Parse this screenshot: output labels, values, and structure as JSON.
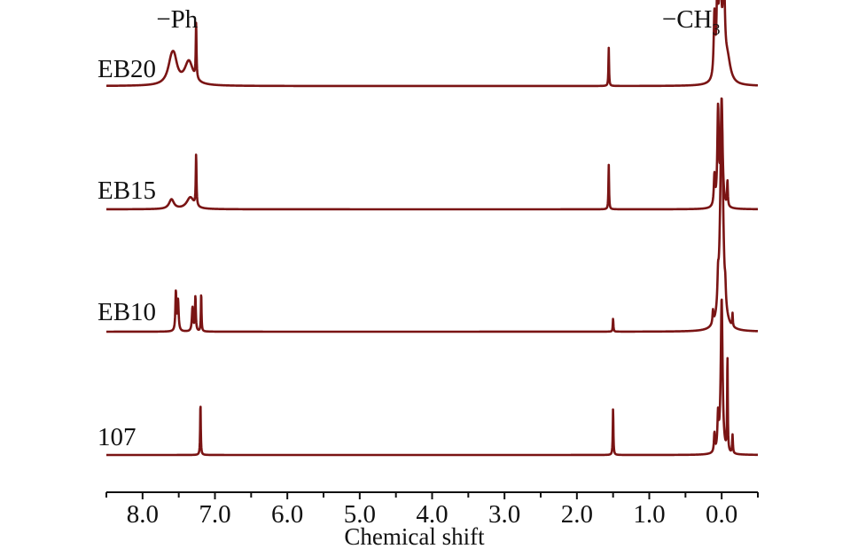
{
  "chart_data": {
    "type": "line",
    "title": "",
    "xlabel": "Chemical shift",
    "ylabel": "",
    "x_reversed": true,
    "xlim": [
      8.5,
      -0.5
    ],
    "x_ticks": [
      8.0,
      7.0,
      6.0,
      5.0,
      4.0,
      3.0,
      2.0,
      1.0,
      0.0
    ],
    "x_tick_labels": [
      "8.0",
      "7.0",
      "6.0",
      "5.0",
      "4.0",
      "3.0",
      "2.0",
      "1.0",
      "0.0"
    ],
    "grid": false,
    "line_color": "#7a1414",
    "annotations": [
      {
        "text_prefix": "−",
        "text": "Ph",
        "subscript": "",
        "x": 7.4
      },
      {
        "text_prefix": "−",
        "text": "CH",
        "subscript": "3",
        "x": 0.3
      }
    ],
    "series": [
      {
        "name": "EB20",
        "peaks": [
          {
            "x": 7.6,
            "h": 0.2,
            "w": 0.06
          },
          {
            "x": 7.56,
            "h": 0.15,
            "w": 0.05
          },
          {
            "x": 7.36,
            "h": 0.22,
            "w": 0.07
          },
          {
            "x": 7.26,
            "h": 0.52,
            "w": 0.006
          },
          {
            "x": 1.56,
            "h": 0.36,
            "w": 0.005
          },
          {
            "x": 0.1,
            "h": 0.58,
            "w": 0.012
          },
          {
            "x": 0.06,
            "h": 0.75,
            "w": 0.012
          },
          {
            "x": 0.02,
            "h": 1.0,
            "w": 0.02
          },
          {
            "x": -0.03,
            "h": 0.95,
            "w": 0.015
          },
          {
            "x": -0.08,
            "h": 0.22,
            "w": 0.05
          }
        ]
      },
      {
        "name": "EB15",
        "peaks": [
          {
            "x": 7.6,
            "h": 0.09,
            "w": 0.04
          },
          {
            "x": 7.34,
            "h": 0.11,
            "w": 0.06
          },
          {
            "x": 7.26,
            "h": 0.48,
            "w": 0.006
          },
          {
            "x": 1.56,
            "h": 0.42,
            "w": 0.005
          },
          {
            "x": 0.1,
            "h": 0.28,
            "w": 0.01
          },
          {
            "x": 0.05,
            "h": 0.9,
            "w": 0.012
          },
          {
            "x": 0.0,
            "h": 1.0,
            "w": 0.015
          },
          {
            "x": -0.08,
            "h": 0.24,
            "w": 0.006
          }
        ]
      },
      {
        "name": "EB10",
        "peaks": [
          {
            "x": 7.54,
            "h": 0.18,
            "w": 0.008
          },
          {
            "x": 7.51,
            "h": 0.14,
            "w": 0.01
          },
          {
            "x": 7.31,
            "h": 0.11,
            "w": 0.01
          },
          {
            "x": 7.27,
            "h": 0.16,
            "w": 0.007
          },
          {
            "x": 7.19,
            "h": 0.18,
            "w": 0.005
          },
          {
            "x": 1.5,
            "h": 0.06,
            "w": 0.005
          },
          {
            "x": 0.12,
            "h": 0.06,
            "w": 0.008
          },
          {
            "x": 0.05,
            "h": 0.12,
            "w": 0.01
          },
          {
            "x": 0.0,
            "h": 1.0,
            "w": 0.025
          },
          {
            "x": -0.05,
            "h": 0.07,
            "w": 0.008
          },
          {
            "x": -0.15,
            "h": 0.06,
            "w": 0.005
          }
        ]
      },
      {
        "name": "107",
        "peaks": [
          {
            "x": 7.2,
            "h": 0.34,
            "w": 0.005
          },
          {
            "x": 1.5,
            "h": 0.3,
            "w": 0.005
          },
          {
            "x": 0.1,
            "h": 0.12,
            "w": 0.008
          },
          {
            "x": 0.05,
            "h": 0.22,
            "w": 0.01
          },
          {
            "x": 0.0,
            "h": 1.0,
            "w": 0.015
          },
          {
            "x": -0.08,
            "h": 0.62,
            "w": 0.005
          },
          {
            "x": -0.15,
            "h": 0.12,
            "w": 0.006
          }
        ]
      }
    ]
  }
}
